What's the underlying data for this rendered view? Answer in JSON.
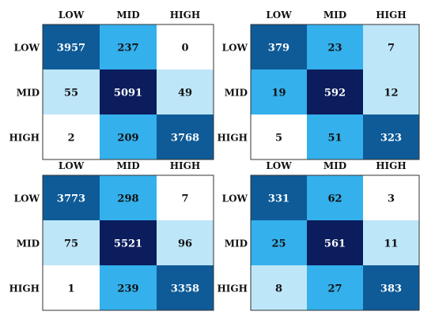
{
  "colors": {
    "level_0": "#ffffff",
    "level_1": "#bde6f8",
    "level_2": "#34b0ec",
    "level_3": "#0e5b98",
    "level_4": "#0b1d5c",
    "text_dark": "#111111",
    "text_light": "#ffffff",
    "frame": "#333333"
  },
  "chart_data": [
    {
      "type": "heatmap",
      "x_labels": [
        "LOW",
        "MID",
        "HIGH"
      ],
      "y_labels": [
        "LOW",
        "MID",
        "HIGH"
      ],
      "values": [
        [
          3957,
          237,
          0
        ],
        [
          55,
          5091,
          49
        ],
        [
          2,
          209,
          3768
        ]
      ],
      "color_levels": [
        [
          3,
          2,
          0
        ],
        [
          1,
          4,
          1
        ],
        [
          0,
          2,
          3
        ]
      ]
    },
    {
      "type": "heatmap",
      "x_labels": [
        "LOW",
        "MID",
        "HIGH"
      ],
      "y_labels": [
        "LOW",
        "MID",
        "HIGH"
      ],
      "values": [
        [
          379,
          23,
          7
        ],
        [
          19,
          592,
          12
        ],
        [
          5,
          51,
          323
        ]
      ],
      "color_levels": [
        [
          3,
          2,
          1
        ],
        [
          2,
          4,
          1
        ],
        [
          0,
          2,
          3
        ]
      ]
    },
    {
      "type": "heatmap",
      "x_labels": [
        "LOW",
        "MID",
        "HIGH"
      ],
      "y_labels": [
        "LOW",
        "MID",
        "HIGH"
      ],
      "values": [
        [
          3773,
          298,
          7
        ],
        [
          75,
          5521,
          96
        ],
        [
          1,
          239,
          3358
        ]
      ],
      "color_levels": [
        [
          3,
          2,
          0
        ],
        [
          1,
          4,
          1
        ],
        [
          0,
          2,
          3
        ]
      ]
    },
    {
      "type": "heatmap",
      "x_labels": [
        "LOW",
        "MID",
        "HIGH"
      ],
      "y_labels": [
        "LOW",
        "MID",
        "HIGH"
      ],
      "values": [
        [
          331,
          62,
          3
        ],
        [
          25,
          561,
          11
        ],
        [
          8,
          27,
          383
        ]
      ],
      "color_levels": [
        [
          3,
          2,
          0
        ],
        [
          2,
          4,
          1
        ],
        [
          1,
          2,
          3
        ]
      ]
    }
  ]
}
